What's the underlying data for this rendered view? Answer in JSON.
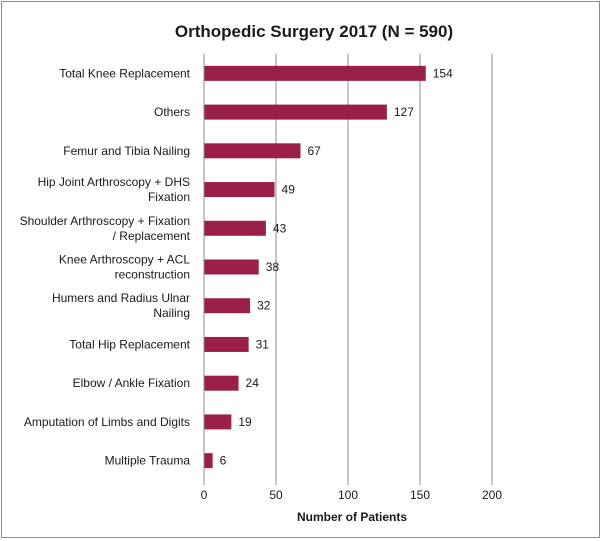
{
  "chart_data": {
    "type": "bar",
    "orientation": "horizontal",
    "title": "Orthopedic Surgery 2017 (N = 590)",
    "xlabel": "Number of Patients",
    "ylabel": "",
    "xlim": [
      0,
      200
    ],
    "xticks": [
      "0",
      "50",
      "100",
      "150",
      "200"
    ],
    "grid": "vertical",
    "bar_color": "#9b2048",
    "categories": [
      [
        "Total Knee Replacement"
      ],
      [
        "Others"
      ],
      [
        "Femur and Tibia Nailing"
      ],
      [
        "Hip Joint Arthroscopy + DHS",
        "Fixation"
      ],
      [
        "Shoulder Arthroscopy + Fixation",
        "/ Replacement"
      ],
      [
        "Knee Arthroscopy + ACL",
        "reconstruction"
      ],
      [
        "Humers and Radius Ulnar",
        "Nailing"
      ],
      [
        "Total Hip Replacement"
      ],
      [
        "Elbow / Ankle Fixation"
      ],
      [
        "Amputation of Limbs and Digits"
      ],
      [
        "Multiple Trauma"
      ]
    ],
    "values": [
      154,
      127,
      67,
      49,
      43,
      38,
      32,
      31,
      24,
      19,
      6
    ],
    "data_labels": [
      "154",
      "127",
      "67",
      "49",
      "43",
      "38",
      "32",
      "31",
      "24",
      "19",
      "6"
    ]
  }
}
